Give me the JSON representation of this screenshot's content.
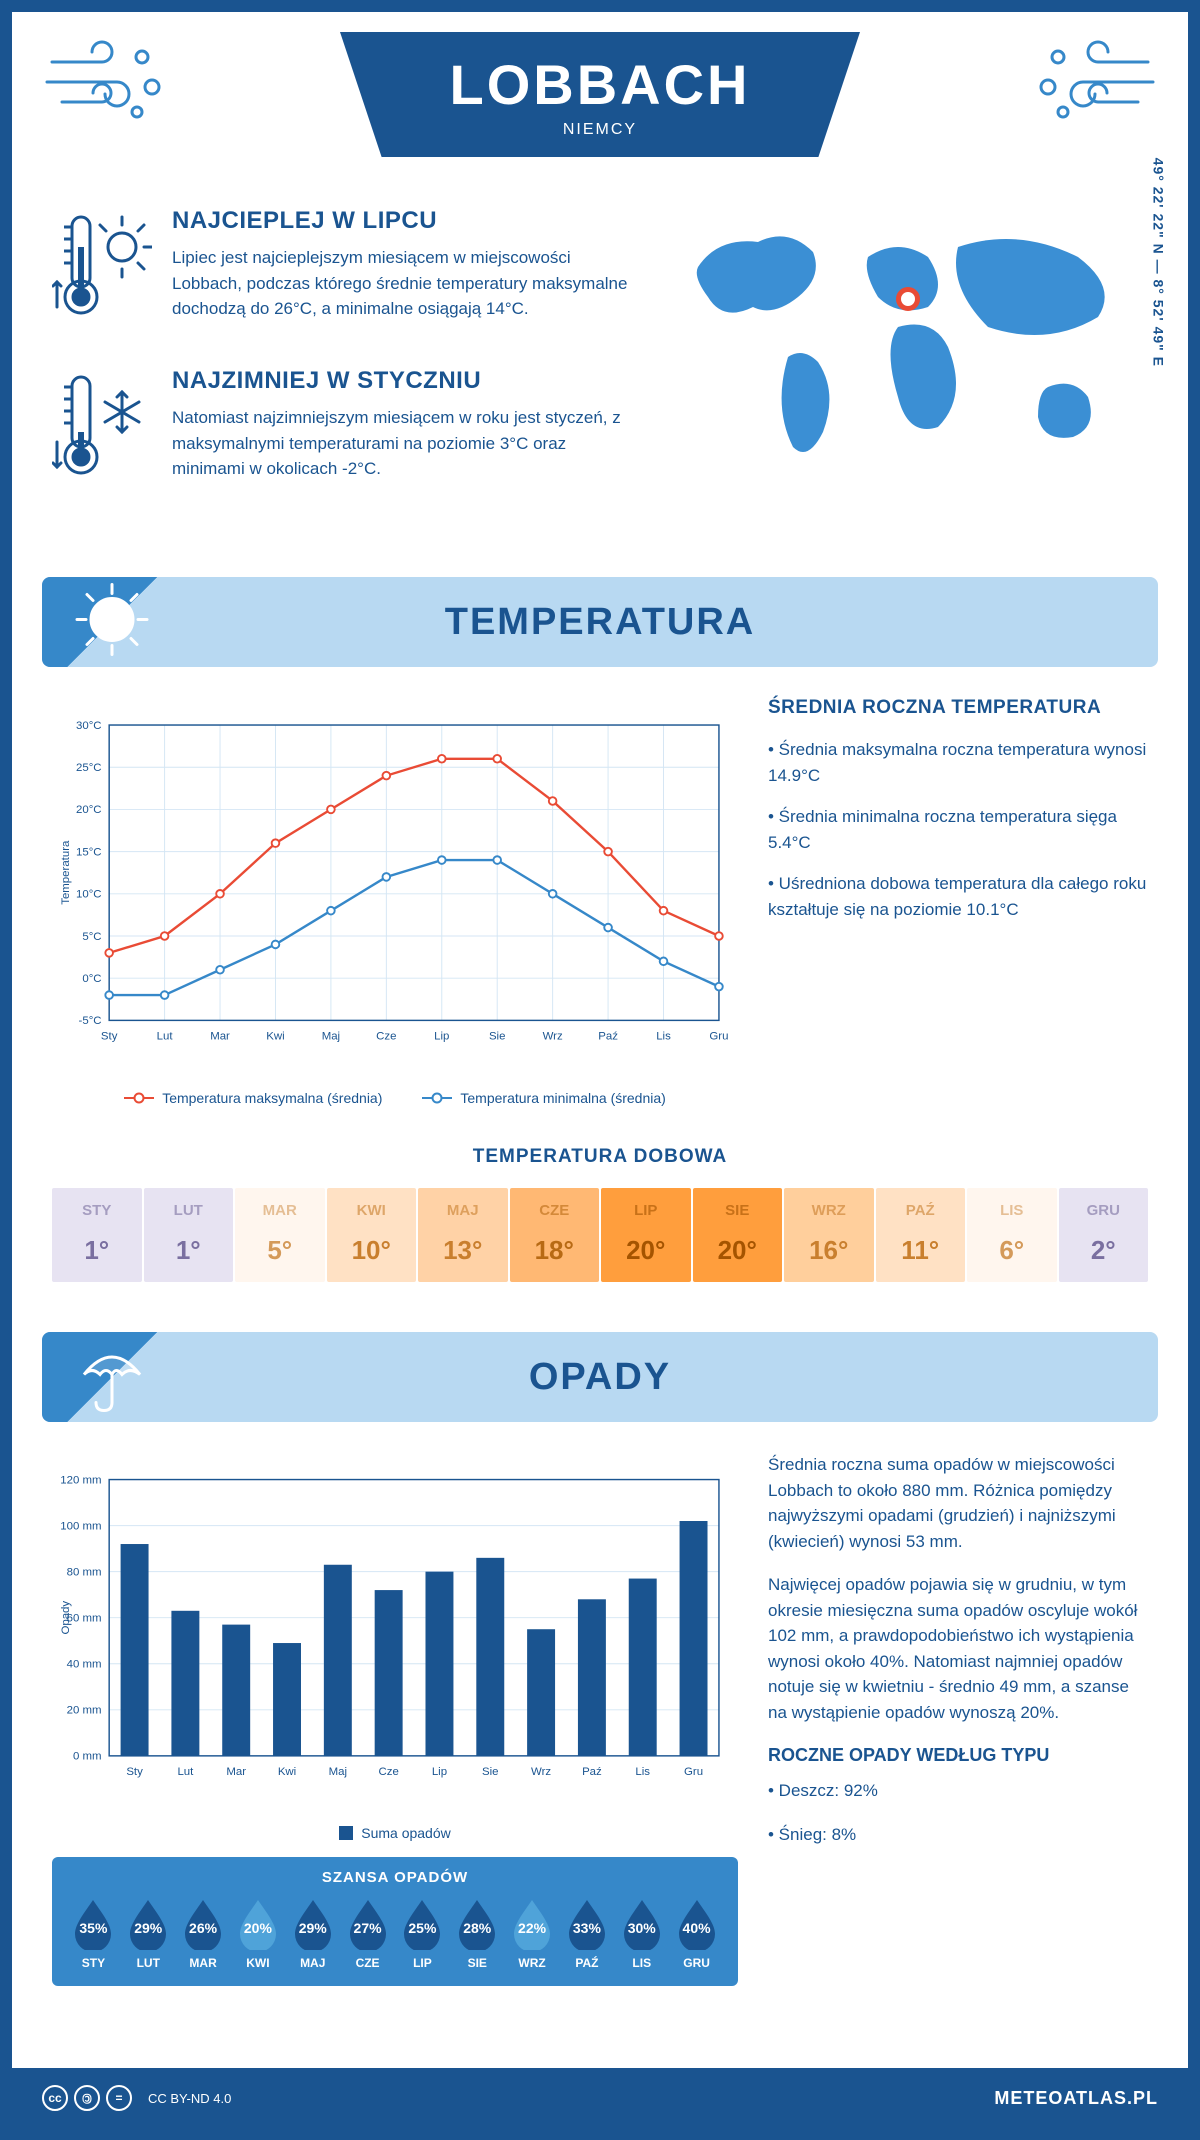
{
  "header": {
    "city": "LOBBACH",
    "country": "NIEMCY"
  },
  "coords": "49° 22' 22\" N — 8° 52' 49\" E",
  "marker": {
    "left_pct": 50,
    "top_pct": 33
  },
  "summary": {
    "hot": {
      "title": "NAJCIEPLEJ W LIPCU",
      "text": "Lipiec jest najcieplejszym miesiącem w miejscowości Lobbach, podczas którego średnie temperatury maksymalne dochodzą do 26°C, a minimalne osiągają 14°C."
    },
    "cold": {
      "title": "NAJZIMNIEJ W STYCZNIU",
      "text": "Natomiast najzimniejszym miesiącem w roku jest styczeń, z maksymalnymi temperaturami na poziomie 3°C oraz minimami w okolicach -2°C."
    }
  },
  "sections": {
    "temperature": "TEMPERATURA",
    "precip": "OPADY"
  },
  "months": [
    "Sty",
    "Lut",
    "Mar",
    "Kwi",
    "Maj",
    "Cze",
    "Lip",
    "Sie",
    "Wrz",
    "Paź",
    "Lis",
    "Gru"
  ],
  "months_upper": [
    "STY",
    "LUT",
    "MAR",
    "KWI",
    "MAJ",
    "CZE",
    "LIP",
    "SIE",
    "WRZ",
    "PAŹ",
    "LIS",
    "GRU"
  ],
  "temp_chart": {
    "type": "line",
    "ylabel": "Temperatura",
    "ylim": [
      -5,
      30
    ],
    "ytick_step": 5,
    "grid_color": "#d4e6f4",
    "max_series": {
      "label": "Temperatura maksymalna (średnia)",
      "color": "#e94b35",
      "values": [
        3,
        5,
        10,
        16,
        20,
        24,
        26,
        26,
        21,
        15,
        8,
        5
      ]
    },
    "min_series": {
      "label": "Temperatura minimalna (średnia)",
      "color": "#3688c9",
      "values": [
        -2,
        -2,
        1,
        4,
        8,
        12,
        14,
        14,
        10,
        6,
        2,
        -1
      ]
    }
  },
  "temp_info": {
    "heading": "ŚREDNIA ROCZNA TEMPERATURA",
    "b1": "• Średnia maksymalna roczna temperatura wynosi 14.9°C",
    "b2": "• Średnia minimalna roczna temperatura sięga 5.4°C",
    "b3": "• Uśredniona dobowa temperatura dla całego roku kształtuje się na poziomie 10.1°C"
  },
  "daily_temp": {
    "heading": "TEMPERATURA DOBOWA",
    "values": [
      "1°",
      "1°",
      "5°",
      "10°",
      "13°",
      "18°",
      "20°",
      "20°",
      "16°",
      "11°",
      "6°",
      "2°"
    ],
    "bg_colors": [
      "#e7e3f2",
      "#e7e3f2",
      "#fff6ee",
      "#ffe1c4",
      "#ffd2a6",
      "#ffb873",
      "#ff9e3d",
      "#ff9e3d",
      "#ffcf9c",
      "#ffe1c4",
      "#fff6ee",
      "#e7e3f2"
    ],
    "text_colors": [
      "#7a6fa0",
      "#7a6fa0",
      "#d49a5a",
      "#c97f2e",
      "#c97f2e",
      "#b86a14",
      "#a55400",
      "#a55400",
      "#c97f2e",
      "#c97f2e",
      "#d49a5a",
      "#7a6fa0"
    ]
  },
  "precip_chart": {
    "type": "bar",
    "ylabel": "Opady",
    "ylim": [
      0,
      120
    ],
    "ytick_step": 20,
    "grid_color": "#d4e6f4",
    "bar_color": "#1a5490",
    "legend_label": "Suma opadów",
    "values": [
      92,
      63,
      57,
      49,
      83,
      72,
      80,
      86,
      55,
      68,
      77,
      102
    ]
  },
  "precip_info": {
    "p1": "Średnia roczna suma opadów w miejscowości Lobbach to około 880 mm. Różnica pomiędzy najwyższymi opadami (grudzień) i najniższymi (kwiecień) wynosi 53 mm.",
    "p2": "Najwięcej opadów pojawia się w grudniu, w tym okresie miesięczna suma opadów oscyluje wokół 102 mm, a prawdopodobieństwo ich wystąpienia wynosi około 40%. Natomiast najmniej opadów notuje się w kwietniu - średnio 49 mm, a szanse na wystąpienie opadów wynoszą 20%.",
    "heading": "ROCZNE OPADY WEDŁUG TYPU",
    "rain": "• Deszcz: 92%",
    "snow": "• Śnieg: 8%"
  },
  "chance": {
    "heading": "SZANSA OPADÓW",
    "values": [
      "35%",
      "29%",
      "26%",
      "20%",
      "29%",
      "27%",
      "25%",
      "28%",
      "22%",
      "33%",
      "30%",
      "40%"
    ],
    "colors": [
      "#1a5490",
      "#1a5490",
      "#1a5490",
      "#4fa3d9",
      "#1a5490",
      "#1a5490",
      "#1a5490",
      "#1a5490",
      "#4fa3d9",
      "#1a5490",
      "#1a5490",
      "#1a5490"
    ]
  },
  "footer": {
    "license": "CC BY-ND 4.0",
    "brand": "METEOATLAS.PL"
  },
  "palette": {
    "primary": "#1a5490",
    "light_blue": "#b8d9f2",
    "mid_blue": "#3688c9",
    "red": "#e94b35"
  }
}
